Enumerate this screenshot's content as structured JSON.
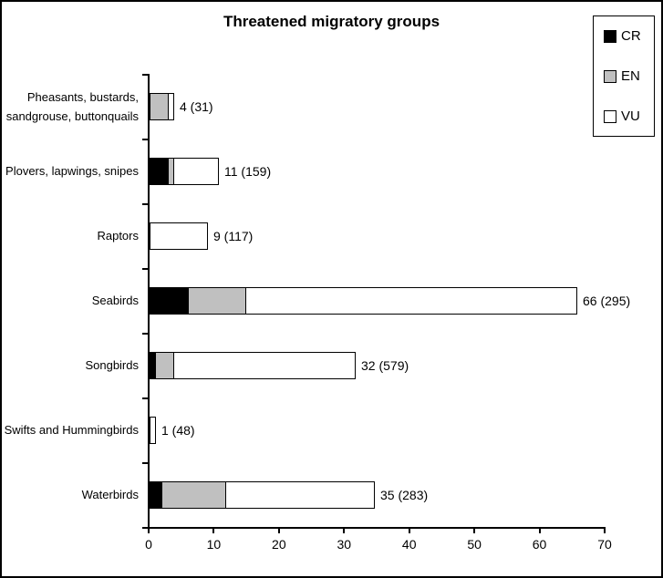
{
  "chart_data": {
    "type": "bar",
    "orientation": "horizontal",
    "stacked": true,
    "title": "Threatened migratory groups",
    "categories": [
      "Pheasants, bustards, sandgrouse, buttonquails",
      "Plovers, lapwings, snipes",
      "Raptors",
      "Seabirds",
      "Songbirds",
      "Swifts and Hummingbirds",
      "Waterbirds"
    ],
    "series": [
      {
        "name": "CR",
        "color": "#000000",
        "values": [
          0,
          3,
          0,
          6,
          1,
          0,
          2
        ]
      },
      {
        "name": "EN",
        "color": "#C0C0C0",
        "values": [
          3,
          1,
          0,
          9,
          3,
          0,
          10
        ]
      },
      {
        "name": "VU",
        "color": "#FFFFFF",
        "values": [
          1,
          7,
          9,
          51,
          28,
          1,
          23
        ]
      }
    ],
    "totals": [
      4,
      11,
      9,
      66,
      32,
      1,
      35
    ],
    "bar_labels": [
      "4 (31)",
      "11 (159)",
      "9 (117)",
      "66 (295)",
      "32 (579)",
      "1 (48)",
      "35 (283)"
    ],
    "xlim": [
      0,
      70
    ],
    "x_ticks": [
      0,
      10,
      20,
      30,
      40,
      50,
      60,
      70
    ],
    "grid": false,
    "legend": {
      "position": "top-right",
      "entries": [
        "CR",
        "EN",
        "VU"
      ]
    },
    "axis_color": "#000000",
    "background": "#FFFFFF"
  }
}
